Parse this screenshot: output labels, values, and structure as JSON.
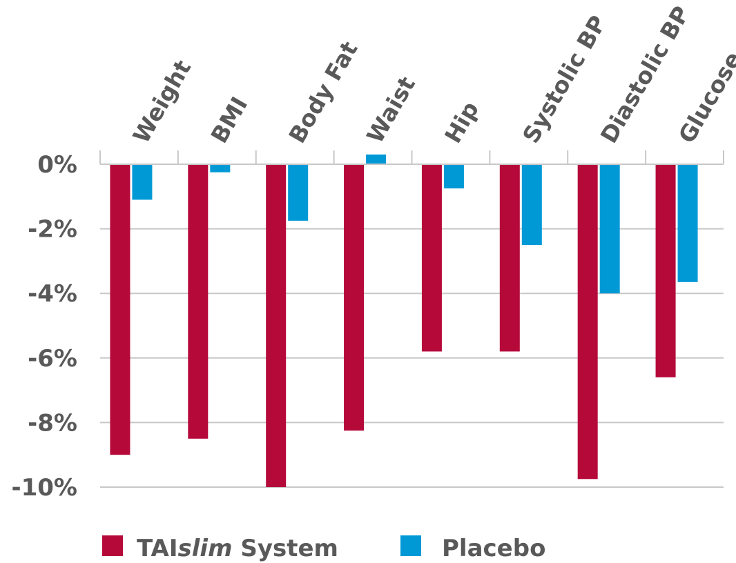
{
  "chart_data": {
    "type": "bar",
    "categories": [
      "Weight",
      "BMI",
      "Body Fat",
      "Waist",
      "Hip",
      "Systolic BP",
      "Diastolic BP",
      "Glucose"
    ],
    "series": [
      {
        "name": "TAIslim System",
        "name_parts": [
          "TAI",
          "slim",
          " System"
        ],
        "color": "#B5093A",
        "values": [
          -9.0,
          -8.5,
          -10.0,
          -8.25,
          -5.8,
          -5.8,
          -9.75,
          -6.6
        ]
      },
      {
        "name": "Placebo",
        "color": "#0099D6",
        "values": [
          -1.1,
          -0.25,
          -1.75,
          0.3,
          -0.75,
          -2.5,
          -4.0,
          -3.65
        ]
      }
    ],
    "ylim": [
      -10,
      0
    ],
    "y_ticks": [
      0,
      -2,
      -4,
      -6,
      -8,
      -10
    ],
    "y_tick_labels": [
      "0%",
      "-2%",
      "-4%",
      "-6%",
      "-8%",
      "-10%"
    ],
    "grid": true,
    "legend_position": "bottom",
    "title": "",
    "xlabel": "",
    "ylabel": ""
  }
}
